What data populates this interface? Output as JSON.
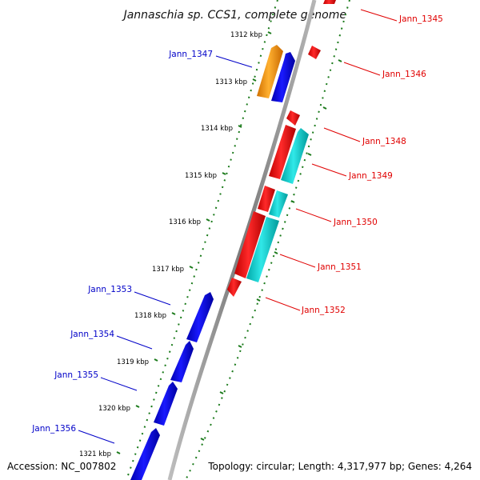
{
  "title": "Jannaschia sp. CCS1, complete genome",
  "footer": {
    "accession": "Accession: NC_007802",
    "topology": "Topology: circular; Length: 4,317,977 bp; Genes: 4,264"
  },
  "colors": {
    "forward_label": "#0000c8",
    "reverse_label": "#e00000",
    "tick": "#1a7a1a",
    "backbone": "#888888",
    "gene_blue": "#0000e6",
    "gene_red": "#ff0000",
    "gene_cyan": "#00cccc",
    "gene_orange": "#ff9900"
  },
  "kbp_ticks": [
    "1312 kbp",
    "1313 kbp",
    "1314 kbp",
    "1315 kbp",
    "1316 kbp",
    "1317 kbp",
    "1318 kbp",
    "1319 kbp",
    "1320 kbp",
    "1321 kbp"
  ],
  "gene_labels": {
    "left": [
      "Jann_1347",
      "Jann_1353",
      "Jann_1354",
      "Jann_1355",
      "Jann_1356"
    ],
    "right": [
      "Jann_1345",
      "Jann_1346",
      "Jann_1348",
      "Jann_1349",
      "Jann_1350",
      "Jann_1351",
      "Jann_1352"
    ]
  }
}
